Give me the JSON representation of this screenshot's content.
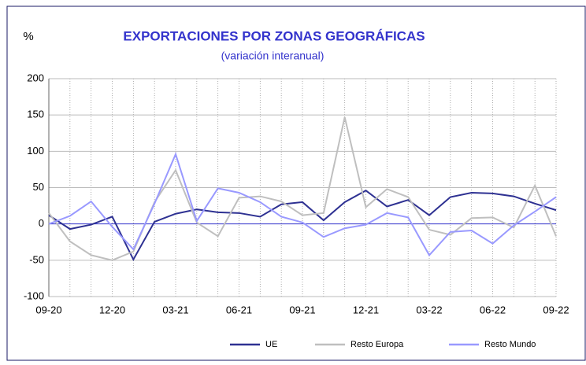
{
  "chart_data": {
    "type": "line",
    "title": "EXPORTACIONES POR ZONAS GEOGRÁFICAS",
    "subtitle": "(variación interanual)",
    "y_label": "%",
    "categories": [
      "09-20",
      null,
      null,
      "12-20",
      null,
      null,
      "03-21",
      null,
      null,
      "06-21",
      null,
      null,
      "09-21",
      null,
      null,
      "12-21",
      null,
      null,
      "03-22",
      null,
      null,
      "06-22",
      null,
      null,
      "09-22"
    ],
    "series": [
      {
        "name": "UE",
        "color": "#2e3192",
        "values": [
          12,
          -7,
          -1,
          10,
          -49,
          3,
          14,
          20,
          16,
          15,
          10,
          27,
          30,
          5,
          30,
          46,
          24,
          33,
          12,
          37,
          43,
          42,
          38,
          28,
          19
        ]
      },
      {
        "name": "Resto Europa",
        "color": "#bfbfbf",
        "values": [
          15,
          -24,
          -43,
          -50,
          -38,
          30,
          74,
          2,
          -17,
          36,
          38,
          31,
          12,
          15,
          147,
          23,
          48,
          37,
          -8,
          -15,
          8,
          9,
          -5,
          53,
          -17
        ]
      },
      {
        "name": "Resto Mundo",
        "color": "#9999ff",
        "values": [
          0,
          11,
          31,
          -4,
          -35,
          28,
          96,
          4,
          49,
          43,
          30,
          10,
          2,
          -18,
          -6,
          -1,
          15,
          9,
          -43,
          -11,
          -9,
          -27,
          -2,
          17,
          37
        ]
      }
    ],
    "ylim": [
      -100,
      200
    ],
    "yticks": [
      -100,
      -50,
      0,
      50,
      100,
      150,
      200
    ],
    "grid": true,
    "legend": "bottom"
  }
}
